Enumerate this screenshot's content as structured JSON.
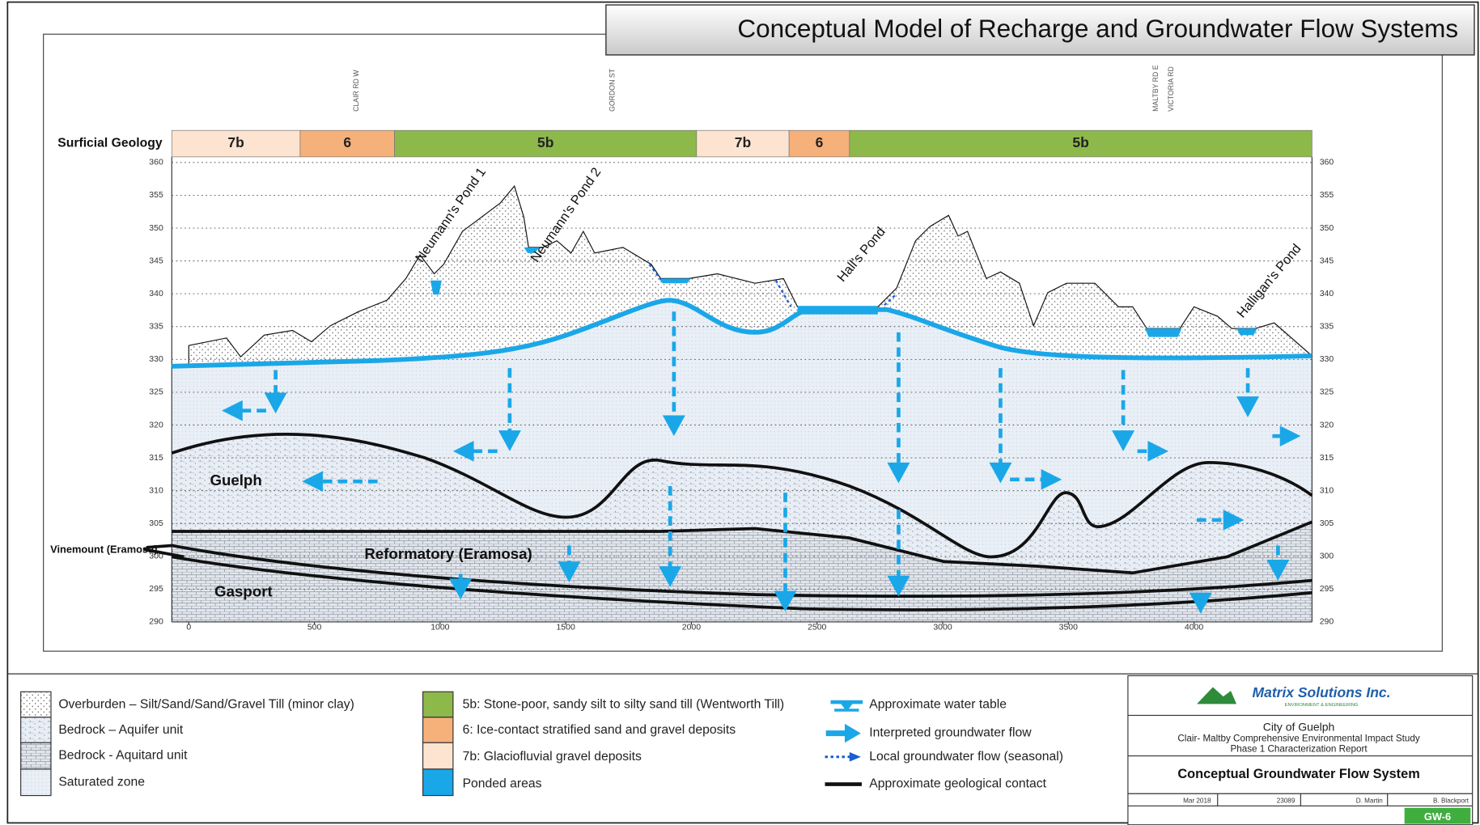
{
  "title": "Conceptual Model of Recharge and Groundwater Flow Systems",
  "roads": [
    "CLAIR RD W",
    "GORDON ST",
    "MALTBY RD E",
    "VICTORIA RD"
  ],
  "surficial_geology": {
    "label": "Surficial Geology",
    "segments": [
      {
        "label": "7b",
        "color": "#fde4d0"
      },
      {
        "label": "6",
        "color": "#f6b07a"
      },
      {
        "label": "5b",
        "color": "#8db84a"
      },
      {
        "label": "7b",
        "color": "#fde4d0"
      },
      {
        "label": "6",
        "color": "#f6b07a"
      },
      {
        "label": "5b",
        "color": "#8db84a"
      }
    ]
  },
  "yticks": [
    290,
    295,
    300,
    305,
    310,
    315,
    320,
    325,
    330,
    335,
    340,
    345,
    350,
    355,
    360
  ],
  "xticks": [
    0,
    500,
    1000,
    1500,
    2000,
    2500,
    3000,
    3500,
    4000
  ],
  "ponds": [
    "Neumann's Pond 1",
    "Neumann's Pond 2",
    "Hall's Pond",
    "Halligan's Pond"
  ],
  "units": {
    "guelph": "Guelph",
    "reformatory": "Reformatory (Eramosa)",
    "gasport": "Gasport",
    "vinemount": "Vinemount (Eramosa)"
  },
  "legend": {
    "column1": [
      "Overburden – Silt/Sand/Sand/Gravel Till (minor clay)",
      "Bedrock – Aquifer unit",
      "Bedrock  - Aquitard unit",
      "Saturated zone"
    ],
    "column2": [
      "5b: Stone-poor, sandy silt to silty sand till (Wentworth Till)",
      "6: Ice-contact stratified sand and gravel deposits",
      "7b: Glaciofluvial gravel deposits",
      "Ponded areas"
    ],
    "column3": [
      "Approximate water table",
      "Interpreted groundwater flow",
      "Local groundwater flow (seasonal)",
      "Approximate geological contact"
    ]
  },
  "title_block": {
    "company": "Matrix Solutions Inc.",
    "company_tagline": "ENVIRONMENT & ENGINEERING",
    "client": "City of Guelph",
    "study": "Clair- Maltby Comprehensive Environmental Impact Study",
    "report": "Phase 1 Characterization Report",
    "figure_title": "Conceptual Groundwater Flow System",
    "date": "Mar 2018",
    "project": "23089",
    "submitter": "D. Martin",
    "reviewer": "B. Blackport",
    "figure": "GW-6"
  }
}
